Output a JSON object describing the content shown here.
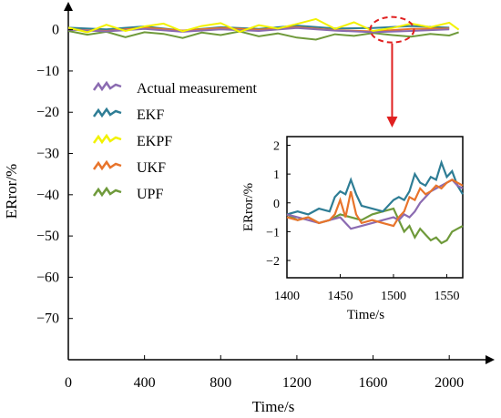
{
  "chart_data": [
    {
      "type": "line",
      "xlabel": "Time/s",
      "ylabel": "ERror/%",
      "xlim": [
        0,
        2200
      ],
      "ylim": [
        -80,
        5
      ],
      "xticks": [
        0,
        400,
        800,
        1200,
        1600,
        2000
      ],
      "yticks": [
        0,
        -10,
        -20,
        -30,
        -40,
        -50,
        -60,
        -70
      ],
      "legend_position": "left",
      "series": [
        {
          "name": "Actual measurement",
          "color": "#8b6bb1",
          "x": [
            0,
            200,
            400,
            600,
            800,
            1000,
            1200,
            1400,
            1600,
            1800,
            2000
          ],
          "y": [
            0,
            -0.4,
            0.2,
            -0.5,
            0.1,
            -0.3,
            0.4,
            -0.2,
            -0.6,
            -0.3,
            0.1
          ]
        },
        {
          "name": "EKF",
          "color": "#2e7d95",
          "x": [
            0,
            200,
            400,
            600,
            800,
            1000,
            1200,
            1400,
            1600,
            1800,
            2000
          ],
          "y": [
            0.5,
            0.1,
            0.8,
            -0.2,
            0.6,
            0.2,
            1.0,
            0.3,
            0.4,
            0.9,
            0.5
          ]
        },
        {
          "name": "EKPF",
          "color": "#f2f200",
          "x": [
            0,
            100,
            200,
            300,
            400,
            500,
            600,
            700,
            800,
            900,
            1000,
            1100,
            1200,
            1300,
            1400,
            1500,
            1600,
            1700,
            1800,
            1900,
            2000,
            2050
          ],
          "y": [
            0.5,
            -0.6,
            1.2,
            -0.3,
            0.8,
            1.5,
            -0.4,
            0.9,
            1.6,
            -0.5,
            1.1,
            0.3,
            1.4,
            2.6,
            0.2,
            1.8,
            -0.3,
            0.4,
            1.5,
            0.6,
            1.7,
            0.0
          ]
        },
        {
          "name": "UKF",
          "color": "#e8742b",
          "x": [
            0,
            200,
            400,
            600,
            800,
            1000,
            1200,
            1400,
            1600,
            1800,
            2000
          ],
          "y": [
            0.1,
            -0.3,
            0.5,
            -0.2,
            0.4,
            0.0,
            0.6,
            -0.1,
            -0.4,
            0.2,
            0.3
          ]
        },
        {
          "name": "UPF",
          "color": "#6f9a3b",
          "x": [
            0,
            100,
            200,
            300,
            400,
            500,
            600,
            700,
            800,
            900,
            1000,
            1100,
            1200,
            1300,
            1400,
            1500,
            1600,
            1700,
            1800,
            1900,
            2000,
            2050
          ],
          "y": [
            -0.3,
            -1.2,
            -0.5,
            -1.8,
            -0.6,
            -1.0,
            -2.0,
            -0.7,
            -1.3,
            -0.4,
            -1.6,
            -0.9,
            -1.9,
            -2.4,
            -1.1,
            -1.5,
            -0.8,
            -1.3,
            -1.7,
            -1.0,
            -1.4,
            -0.6
          ]
        }
      ],
      "annotation": {
        "highlight_center_x": 1700,
        "highlight_center_y": 0
      }
    },
    {
      "type": "line",
      "role": "inset",
      "xlabel": "Time/s",
      "ylabel": "ERror/%",
      "xlim": [
        1400,
        1565
      ],
      "ylim": [
        -2.6,
        2.3
      ],
      "xticks": [
        1400,
        1450,
        1500,
        1550
      ],
      "yticks": [
        2,
        1,
        0,
        -1,
        -2
      ],
      "series": [
        {
          "name": "Actual measurement",
          "color": "#8b6bb1",
          "x": [
            1400,
            1410,
            1420,
            1430,
            1440,
            1450,
            1460,
            1470,
            1480,
            1490,
            1500,
            1505,
            1510,
            1515,
            1520,
            1525,
            1530,
            1535,
            1540,
            1545,
            1550,
            1555,
            1560,
            1565
          ],
          "y": [
            -0.4,
            -0.5,
            -0.6,
            -0.7,
            -0.6,
            -0.5,
            -0.9,
            -0.8,
            -0.7,
            -0.6,
            -0.5,
            -0.6,
            -0.4,
            -0.5,
            -0.3,
            0.0,
            0.2,
            0.4,
            0.5,
            0.6,
            0.7,
            0.8,
            0.6,
            0.5
          ]
        },
        {
          "name": "EKF",
          "color": "#2e7d95",
          "x": [
            1400,
            1410,
            1420,
            1430,
            1440,
            1445,
            1450,
            1455,
            1460,
            1465,
            1470,
            1480,
            1490,
            1500,
            1505,
            1510,
            1515,
            1520,
            1525,
            1530,
            1535,
            1540,
            1545,
            1550,
            1555,
            1560,
            1565
          ],
          "y": [
            -0.4,
            -0.3,
            -0.4,
            -0.2,
            -0.3,
            0.2,
            0.4,
            0.3,
            0.8,
            0.3,
            -0.1,
            -0.2,
            -0.3,
            0.1,
            0.2,
            0.1,
            0.4,
            1.0,
            0.7,
            0.6,
            0.9,
            0.8,
            1.4,
            0.9,
            1.1,
            0.6,
            0.3
          ]
        },
        {
          "name": "UKF",
          "color": "#e8742b",
          "x": [
            1400,
            1410,
            1420,
            1430,
            1440,
            1445,
            1450,
            1455,
            1460,
            1465,
            1470,
            1480,
            1490,
            1500,
            1505,
            1510,
            1515,
            1520,
            1525,
            1530,
            1535,
            1540,
            1545,
            1550,
            1555,
            1560,
            1565
          ],
          "y": [
            -0.5,
            -0.6,
            -0.5,
            -0.7,
            -0.6,
            -0.4,
            0.1,
            -0.5,
            0.4,
            -0.4,
            -0.7,
            -0.6,
            -0.7,
            -0.8,
            -0.5,
            -0.3,
            0.2,
            0.1,
            0.5,
            0.3,
            0.4,
            0.6,
            0.5,
            0.7,
            0.8,
            0.7,
            0.6
          ]
        },
        {
          "name": "UPF",
          "color": "#6f9a3b",
          "x": [
            1400,
            1410,
            1420,
            1430,
            1440,
            1450,
            1460,
            1470,
            1480,
            1490,
            1500,
            1505,
            1510,
            1515,
            1520,
            1525,
            1530,
            1535,
            1540,
            1545,
            1550,
            1555,
            1560,
            1565
          ],
          "y": [
            -0.4,
            -0.6,
            -0.5,
            -0.7,
            -0.6,
            -0.4,
            -0.5,
            -0.6,
            -0.4,
            -0.3,
            -0.2,
            -0.6,
            -1.0,
            -0.8,
            -1.2,
            -0.9,
            -1.1,
            -1.3,
            -1.2,
            -1.4,
            -1.3,
            -1.0,
            -0.9,
            -0.8
          ]
        }
      ]
    }
  ]
}
